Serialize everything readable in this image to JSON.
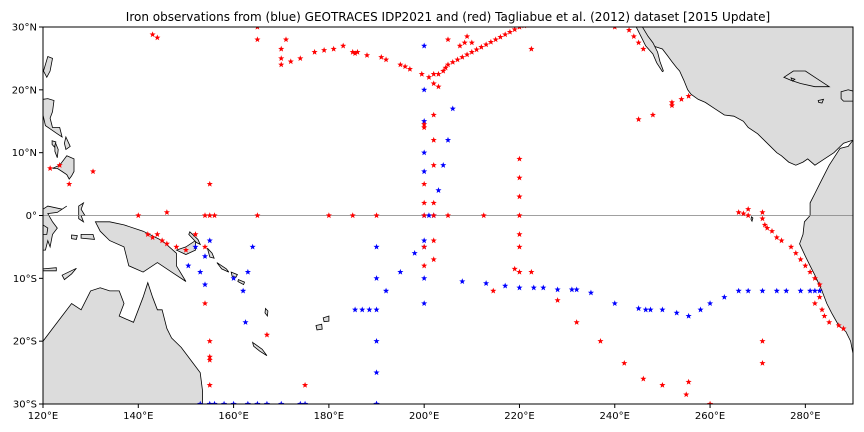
{
  "title": "Iron observations from (blue) GEOTRACES IDP2021 and (red) Tagliabue et al. (2012) dataset [2015 Update]",
  "chart_data": {
    "type": "scatter",
    "projection": "equirectangular",
    "extent": {
      "lon": [
        120,
        290
      ],
      "lat": [
        -30,
        30
      ]
    },
    "equator_line": true,
    "colors": {
      "land": "#dcdcdc",
      "coast": "#000000",
      "geotraces": "#0000ff",
      "tagliabue": "#ff0000",
      "equator": "#808080"
    },
    "x_ticks": [
      {
        "value": 120,
        "label": "120°E"
      },
      {
        "value": 140,
        "label": "140°E"
      },
      {
        "value": 160,
        "label": "160°E"
      },
      {
        "value": 180,
        "label": "180°E"
      },
      {
        "value": 200,
        "label": "200°E"
      },
      {
        "value": 220,
        "label": "220°E"
      },
      {
        "value": 240,
        "label": "240°E"
      },
      {
        "value": 260,
        "label": "260°E"
      },
      {
        "value": 280,
        "label": "280°E"
      }
    ],
    "y_ticks": [
      {
        "value": 30,
        "label": "30°N"
      },
      {
        "value": 20,
        "label": "20°N"
      },
      {
        "value": 10,
        "label": "10°N"
      },
      {
        "value": 0,
        "label": "0°"
      },
      {
        "value": -10,
        "label": "10°S"
      },
      {
        "value": -20,
        "label": "20°S"
      },
      {
        "value": -30,
        "label": "30°S"
      }
    ],
    "series": [
      {
        "key": "geotraces",
        "points": [
          [
            200,
            27
          ],
          [
            200,
            20
          ],
          [
            200,
            15
          ],
          [
            200,
            10
          ],
          [
            200,
            7
          ],
          [
            200,
            0
          ],
          [
            200,
            -4
          ],
          [
            200,
            -5
          ],
          [
            200,
            -10
          ],
          [
            200,
            -14
          ],
          [
            203,
            4
          ],
          [
            204,
            8
          ],
          [
            205,
            12
          ],
          [
            206,
            17
          ],
          [
            201,
            0
          ],
          [
            202,
            0
          ],
          [
            190,
            -5
          ],
          [
            190,
            -10
          ],
          [
            190,
            -15
          ],
          [
            190,
            -20
          ],
          [
            190,
            -25
          ],
          [
            190,
            -30
          ],
          [
            188.5,
            -15
          ],
          [
            187,
            -15
          ],
          [
            185.5,
            -15
          ],
          [
            192,
            -12
          ],
          [
            195,
            -9
          ],
          [
            198,
            -6
          ],
          [
            208,
            -10.5
          ],
          [
            213,
            -10.8
          ],
          [
            217,
            -11.2
          ],
          [
            220,
            -11.5
          ],
          [
            223,
            -11.5
          ],
          [
            225,
            -11.5
          ],
          [
            228,
            -11.8
          ],
          [
            231,
            -11.8
          ],
          [
            232,
            -11.8
          ],
          [
            235,
            -12.3
          ],
          [
            240,
            -14
          ],
          [
            245,
            -14.8
          ],
          [
            246.5,
            -15
          ],
          [
            247.5,
            -15
          ],
          [
            250,
            -15
          ],
          [
            253,
            -15.5
          ],
          [
            255.5,
            -16
          ],
          [
            258,
            -15
          ],
          [
            260,
            -14
          ],
          [
            263,
            -13
          ],
          [
            266,
            -12
          ],
          [
            268,
            -12
          ],
          [
            271,
            -12
          ],
          [
            274,
            -12
          ],
          [
            276,
            -12
          ],
          [
            279,
            -12
          ],
          [
            281,
            -12
          ],
          [
            282,
            -12
          ],
          [
            283,
            -12
          ],
          [
            152,
            -5
          ],
          [
            153,
            -9
          ],
          [
            154,
            -11
          ],
          [
            155,
            -4
          ],
          [
            154,
            -6.5
          ],
          [
            150.5,
            -8
          ],
          [
            160,
            -10
          ],
          [
            162,
            -12
          ],
          [
            163,
            -9
          ],
          [
            162.5,
            -17
          ],
          [
            164,
            -5
          ],
          [
            153,
            -30
          ],
          [
            155,
            -30
          ],
          [
            156,
            -30
          ],
          [
            158,
            -30
          ],
          [
            160,
            -30
          ],
          [
            163,
            -30
          ],
          [
            165,
            -30
          ],
          [
            167,
            -30
          ],
          [
            170,
            -30
          ],
          [
            174,
            -30
          ],
          [
            175,
            -30
          ],
          [
            190,
            -30
          ]
        ]
      },
      {
        "key": "tagliabue",
        "points": [
          [
            121.5,
            7.5
          ],
          [
            123.5,
            8
          ],
          [
            125.5,
            5
          ],
          [
            130.5,
            7
          ],
          [
            143,
            28.8
          ],
          [
            144,
            28.3
          ],
          [
            165,
            28
          ],
          [
            165,
            30
          ],
          [
            170,
            24
          ],
          [
            170,
            25
          ],
          [
            170,
            26.5
          ],
          [
            171,
            28
          ],
          [
            172,
            24.5
          ],
          [
            174,
            25
          ],
          [
            177,
            26
          ],
          [
            179,
            26.3
          ],
          [
            181,
            26.5
          ],
          [
            183,
            27
          ],
          [
            185,
            26
          ],
          [
            185.5,
            25.8
          ],
          [
            186,
            26
          ],
          [
            188,
            25.5
          ],
          [
            191,
            25.2
          ],
          [
            192,
            24.8
          ],
          [
            195,
            24
          ],
          [
            196,
            23.7
          ],
          [
            197,
            23.3
          ],
          [
            199.5,
            22.5
          ],
          [
            201,
            22
          ],
          [
            202,
            22.5
          ],
          [
            202,
            21
          ],
          [
            203,
            20.5
          ],
          [
            203,
            22.5
          ],
          [
            204,
            23
          ],
          [
            204.5,
            23.5
          ],
          [
            205,
            24
          ],
          [
            206,
            24.4
          ],
          [
            207,
            24.8
          ],
          [
            208,
            25.2
          ],
          [
            209,
            25.6
          ],
          [
            210,
            26
          ],
          [
            211,
            26.4
          ],
          [
            212,
            26.8
          ],
          [
            213,
            27.2
          ],
          [
            214,
            27.6
          ],
          [
            215,
            28
          ],
          [
            216,
            28.4
          ],
          [
            217,
            28.8
          ],
          [
            218,
            29.2
          ],
          [
            219,
            29.6
          ],
          [
            220,
            30
          ],
          [
            221,
            30.2
          ],
          [
            205,
            28
          ],
          [
            207.5,
            27
          ],
          [
            208.5,
            27.5
          ],
          [
            209,
            28.5
          ],
          [
            210,
            27.5
          ],
          [
            222.5,
            26.5
          ],
          [
            200,
            14.5
          ],
          [
            200,
            14
          ],
          [
            200,
            5
          ],
          [
            200,
            2
          ],
          [
            200,
            0
          ],
          [
            200,
            -5
          ],
          [
            200,
            -8
          ],
          [
            202,
            -4
          ],
          [
            202,
            -7
          ],
          [
            202,
            16
          ],
          [
            202,
            12
          ],
          [
            202,
            8
          ],
          [
            202,
            2
          ],
          [
            202,
            0
          ],
          [
            205,
            0
          ],
          [
            220,
            9
          ],
          [
            220,
            6
          ],
          [
            220,
            3
          ],
          [
            220,
            0
          ],
          [
            220,
            -3
          ],
          [
            220,
            -5
          ],
          [
            220,
            -9
          ],
          [
            219,
            -8.5
          ],
          [
            222.5,
            -9
          ],
          [
            214.5,
            -12
          ],
          [
            212.5,
            0
          ],
          [
            190,
            0
          ],
          [
            185,
            0
          ],
          [
            180,
            0
          ],
          [
            165,
            0
          ],
          [
            156,
            0
          ],
          [
            155,
            0
          ],
          [
            154,
            0
          ],
          [
            146,
            0.5
          ],
          [
            140,
            0
          ],
          [
            142,
            -3
          ],
          [
            143,
            -3.5
          ],
          [
            144,
            -3
          ],
          [
            145,
            -4
          ],
          [
            146,
            -4.5
          ],
          [
            148,
            -5
          ],
          [
            150,
            -5.5
          ],
          [
            152,
            -3
          ],
          [
            154,
            -5
          ],
          [
            155,
            5
          ],
          [
            154,
            -14
          ],
          [
            155,
            -20
          ],
          [
            155,
            -22.5
          ],
          [
            155,
            -23
          ],
          [
            155,
            -27
          ],
          [
            167,
            -19
          ],
          [
            175,
            -27
          ],
          [
            228,
            -13.5
          ],
          [
            232,
            -17
          ],
          [
            237,
            -20
          ],
          [
            242,
            -23.5
          ],
          [
            246,
            -26
          ],
          [
            250,
            -27
          ],
          [
            255.5,
            -26.5
          ],
          [
            255,
            -28.5
          ],
          [
            260,
            -30
          ],
          [
            240,
            30
          ],
          [
            245,
            15.3
          ],
          [
            248,
            16
          ],
          [
            252,
            17.5
          ],
          [
            252,
            18
          ],
          [
            254,
            18.5
          ],
          [
            255.5,
            19
          ],
          [
            243,
            29.5
          ],
          [
            244,
            28.5
          ],
          [
            245,
            27.5
          ],
          [
            246,
            26.5
          ],
          [
            266,
            0.5
          ],
          [
            267,
            0.3
          ],
          [
            268,
            0
          ],
          [
            268,
            1
          ],
          [
            271,
            0.5
          ],
          [
            271,
            -0.5
          ],
          [
            271,
            -20
          ],
          [
            271,
            -23.5
          ],
          [
            271.5,
            -1.5
          ],
          [
            272,
            -2
          ],
          [
            273,
            -2.5
          ],
          [
            274,
            -3.5
          ],
          [
            275,
            -4
          ],
          [
            277,
            -5
          ],
          [
            278,
            -6
          ],
          [
            279,
            -7
          ],
          [
            280,
            -8
          ],
          [
            281,
            -9
          ],
          [
            282,
            -10
          ],
          [
            283,
            -11
          ],
          [
            283,
            -13
          ],
          [
            282,
            -14
          ],
          [
            283.5,
            -15
          ],
          [
            284,
            -16
          ],
          [
            285,
            -17
          ],
          [
            287,
            -17.5
          ],
          [
            288,
            -18
          ]
        ]
      }
    ]
  }
}
